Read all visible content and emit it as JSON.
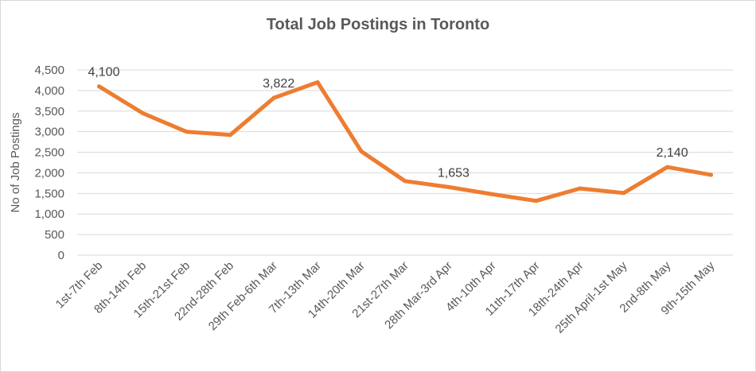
{
  "chart_data": {
    "type": "line",
    "title": "Total Job Postings in Toronto",
    "xlabel": "",
    "ylabel": "No of Job Postings",
    "categories": [
      "1st-7th Feb",
      "8th-14th Feb",
      "15th-21st Feb",
      "22nd-28th Feb",
      "29th Feb-6th Mar",
      "7th-13th Mar",
      "14th-20th Mar",
      "21st-27th Mar",
      "28th Mar-3rd Apr",
      "4th-10th Apr",
      "11th-17th Apr",
      "18th-24th Apr",
      "25th April-1st May",
      "2nd-8th May",
      "9th-15th May"
    ],
    "series": [
      {
        "values": [
          4100,
          3450,
          3000,
          2920,
          3822,
          4200,
          2520,
          1800,
          1653,
          1480,
          1320,
          1620,
          1510,
          2140,
          1950
        ]
      }
    ],
    "data_labels": [
      {
        "index": 0,
        "text": "4,100"
      },
      {
        "index": 4,
        "text": "3,822"
      },
      {
        "index": 8,
        "text": "1,653"
      },
      {
        "index": 13,
        "text": "2,140"
      }
    ],
    "yticks": [
      {
        "value": 0,
        "label": "0"
      },
      {
        "value": 500,
        "label": "500"
      },
      {
        "value": 1000,
        "label": "1,000"
      },
      {
        "value": 1500,
        "label": "1,500"
      },
      {
        "value": 2000,
        "label": "2,000"
      },
      {
        "value": 2500,
        "label": "2,500"
      },
      {
        "value": 3000,
        "label": "3,000"
      },
      {
        "value": 3500,
        "label": "3,500"
      },
      {
        "value": 4000,
        "label": "4,000"
      },
      {
        "value": 4500,
        "label": "4,500"
      }
    ],
    "ylim": [
      0,
      4500
    ],
    "grid": true,
    "legend": "none",
    "line_color": "#ED7D31",
    "grid_color": "#d9d9d9"
  }
}
